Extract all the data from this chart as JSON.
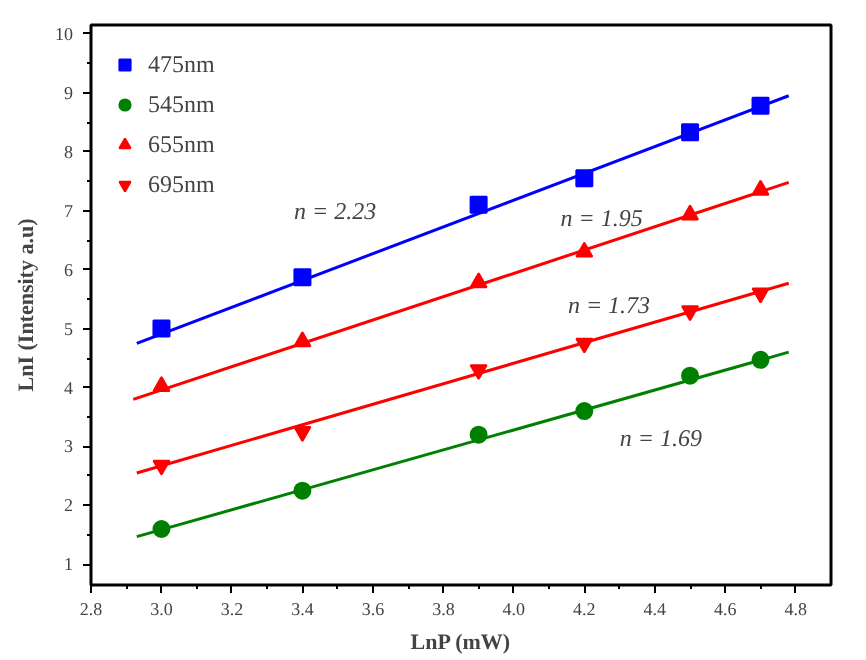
{
  "chart_data": {
    "type": "scatter",
    "xlabel": "LnP (mW)",
    "ylabel": "LnI (Intensity a.u)",
    "x": [
      3.0,
      3.4,
      3.9,
      4.2,
      4.5,
      4.7
    ],
    "series": [
      {
        "name": "475nm",
        "color": "#0000ff",
        "marker": "square",
        "values": [
          5.0,
          5.87,
          7.1,
          7.55,
          8.33,
          8.78
        ]
      },
      {
        "name": "545nm",
        "color": "#008000",
        "marker": "circle",
        "values": [
          1.6,
          2.25,
          3.2,
          3.6,
          4.2,
          4.47
        ]
      },
      {
        "name": "655nm",
        "color": "#ff0000",
        "marker": "triangle",
        "values": [
          4.02,
          4.78,
          5.78,
          6.3,
          6.93,
          7.35
        ]
      },
      {
        "name": "695nm",
        "color": "#ff0000",
        "values": [
          2.68,
          3.25,
          4.3,
          4.75,
          5.3,
          5.6
        ]
      },
      {
        "type": "line",
        "color": "#0000ff",
        "x": [
          2.93,
          4.78
        ],
        "values": [
          4.75,
          8.95
        ]
      },
      {
        "type": "line",
        "color": "#008000",
        "x": [
          2.93,
          4.78
        ],
        "values": [
          1.47,
          4.6
        ]
      },
      {
        "type": "line",
        "color": "#ff0000",
        "x": [
          2.92,
          4.78
        ],
        "values": [
          3.8,
          7.48
        ]
      },
      {
        "type": "line",
        "color": "#ff0000",
        "x": [
          2.93,
          4.78
        ],
        "values": [
          2.55,
          5.77
        ]
      }
    ],
    "annotations": [
      "n = 2.23",
      "n = 1.95",
      "n = 1.73",
      "n = 1.69"
    ],
    "xlim": [
      2.8,
      4.9
    ],
    "ylim": [
      0.65,
      10.15
    ],
    "xticks": [
      2.8,
      {
        "value": 3,
        "label": "3.0"
      },
      3.2,
      3.4,
      3.6,
      3.8,
      {
        "value": 4,
        "label": "4.0"
      },
      4.2,
      4.4,
      4.6,
      4.8
    ],
    "yticks": [
      1,
      2,
      3,
      4,
      5,
      6,
      7,
      8,
      9,
      10
    ],
    "grid": false,
    "legend": "top left"
  }
}
